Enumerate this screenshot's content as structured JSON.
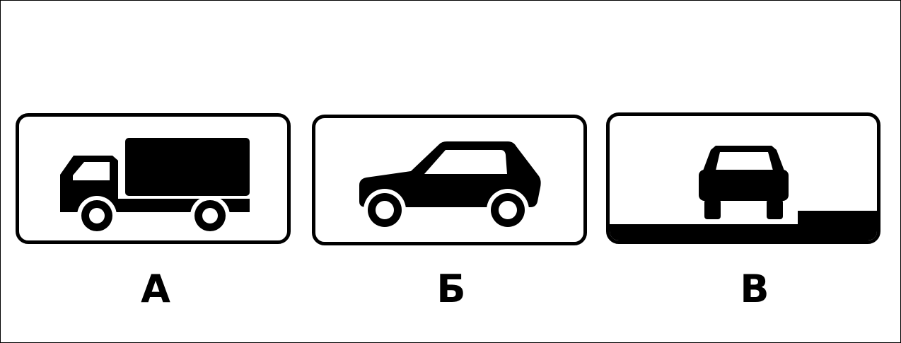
{
  "signs": [
    {
      "id": "a",
      "label": "А",
      "pictogram": "truck-icon"
    },
    {
      "id": "b",
      "label": "Б",
      "pictogram": "passenger-car-icon"
    },
    {
      "id": "c",
      "label": "В",
      "pictogram": "car-on-sidewalk-parking-icon"
    }
  ],
  "colors": {
    "sign_background": "#ffffff",
    "sign_border": "#000000",
    "pictogram": "#000000",
    "label_text": "#000000"
  }
}
